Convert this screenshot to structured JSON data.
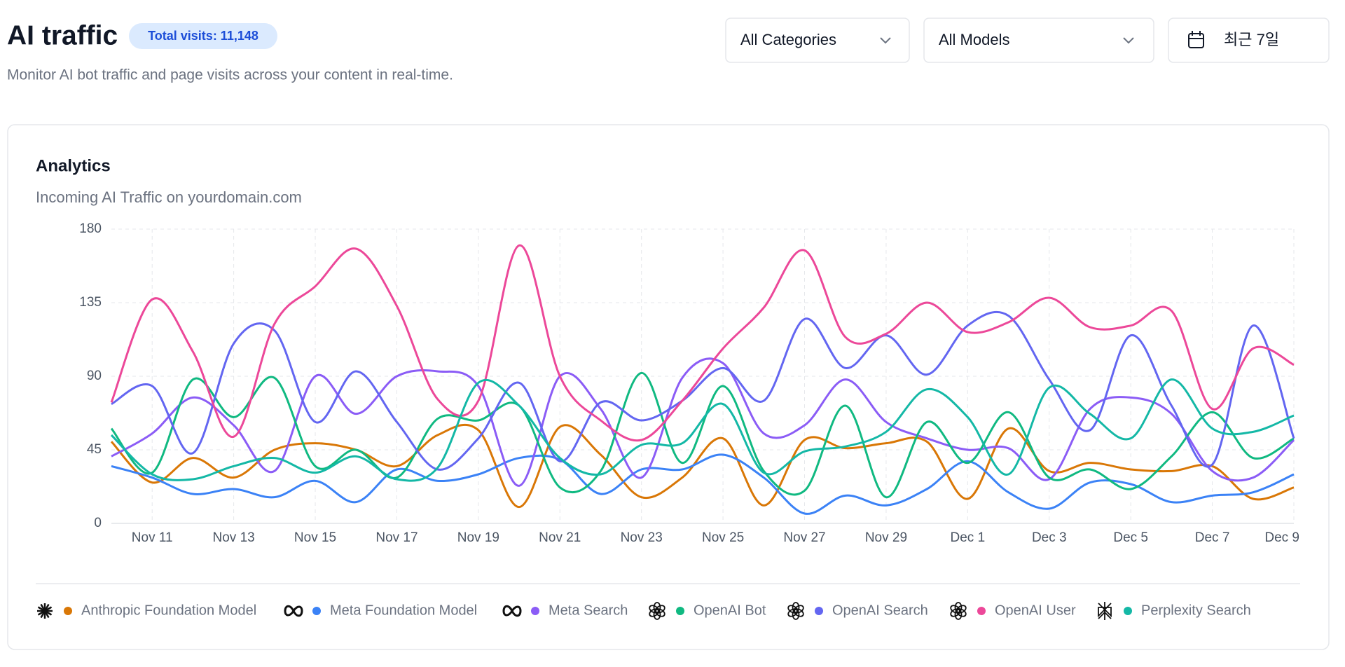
{
  "header": {
    "title": "AI traffic",
    "badge": "Total visits: 11,148",
    "subtitle": "Monitor AI bot traffic and page visits across your content in real-time."
  },
  "filters": [
    "All Categories",
    "All Models",
    "최근 7일"
  ],
  "chart_data": {
    "type": "line",
    "title": "Analytics",
    "subtitle": "Incoming AI Traffic on yourdomain.com",
    "categories": [
      null,
      "Nov 11",
      null,
      "Nov 13",
      null,
      "Nov 15",
      null,
      "Nov 17",
      null,
      "Nov 19",
      null,
      "Nov 21",
      null,
      "Nov 23",
      null,
      "Nov 25",
      null,
      "Nov 27",
      null,
      "Nov 29",
      null,
      "Dec 1",
      null,
      "Dec 3",
      null,
      "Dec 5",
      null,
      "Dec 7",
      null,
      "Dec 9"
    ],
    "ylim": [
      0,
      180
    ],
    "yticks": [
      0,
      45,
      90,
      135,
      180
    ],
    "grid": true,
    "series": [
      {
        "name": "Anthropic Foundation Model",
        "color": "#d97706",
        "values": [
          50,
          25,
          40,
          28,
          45,
          49,
          45,
          35,
          54,
          57,
          10,
          59,
          42,
          16,
          28,
          52,
          11,
          51,
          46,
          49,
          50,
          15,
          58,
          32,
          37,
          33,
          32,
          35,
          15,
          22
        ]
      },
      {
        "name": "Meta Foundation Model",
        "color": "#3b82f6",
        "values": [
          35,
          28,
          18,
          21,
          16,
          26,
          13,
          33,
          26,
          30,
          40,
          39,
          18,
          33,
          33,
          42,
          28,
          6,
          17,
          11,
          21,
          38,
          19,
          9,
          25,
          24,
          13,
          17,
          19,
          30
        ]
      },
      {
        "name": "Meta Search",
        "color": "#8b5cf6",
        "values": [
          41,
          55,
          77,
          60,
          32,
          90,
          67,
          90,
          93,
          84,
          23,
          90,
          70,
          28,
          89,
          98,
          55,
          60,
          88,
          62,
          52,
          45,
          46,
          27,
          70,
          77,
          67,
          32,
          28,
          51
        ]
      },
      {
        "name": "OpenAI Bot",
        "color": "#10b981",
        "values": [
          58,
          31,
          88,
          65,
          89,
          35,
          45,
          28,
          64,
          63,
          72,
          22,
          32,
          92,
          37,
          84,
          32,
          20,
          72,
          16,
          62,
          37,
          68,
          28,
          33,
          21,
          41,
          68,
          40,
          52
        ]
      },
      {
        "name": "OpenAI Search",
        "color": "#6366f1",
        "values": [
          73,
          84,
          43,
          110,
          118,
          62,
          93,
          62,
          33,
          52,
          86,
          38,
          74,
          63,
          75,
          95,
          75,
          125,
          95,
          115,
          91,
          121,
          127,
          88,
          57,
          115,
          72,
          36,
          121,
          52
        ]
      },
      {
        "name": "OpenAI User",
        "color": "#ec4899",
        "values": [
          74,
          137,
          105,
          53,
          122,
          145,
          168,
          133,
          76,
          75,
          170,
          90,
          63,
          51,
          75,
          107,
          132,
          167,
          114,
          116,
          135,
          117,
          123,
          138,
          120,
          121,
          130,
          70,
          107,
          97
        ]
      },
      {
        "name": "Perplexity Search",
        "color": "#14b8a6",
        "values": [
          54,
          30,
          27,
          35,
          40,
          31,
          41,
          27,
          34,
          86,
          72,
          40,
          30,
          48,
          49,
          73,
          31,
          44,
          47,
          56,
          82,
          65,
          30,
          83,
          67,
          52,
          88,
          58,
          56,
          66
        ]
      }
    ]
  }
}
